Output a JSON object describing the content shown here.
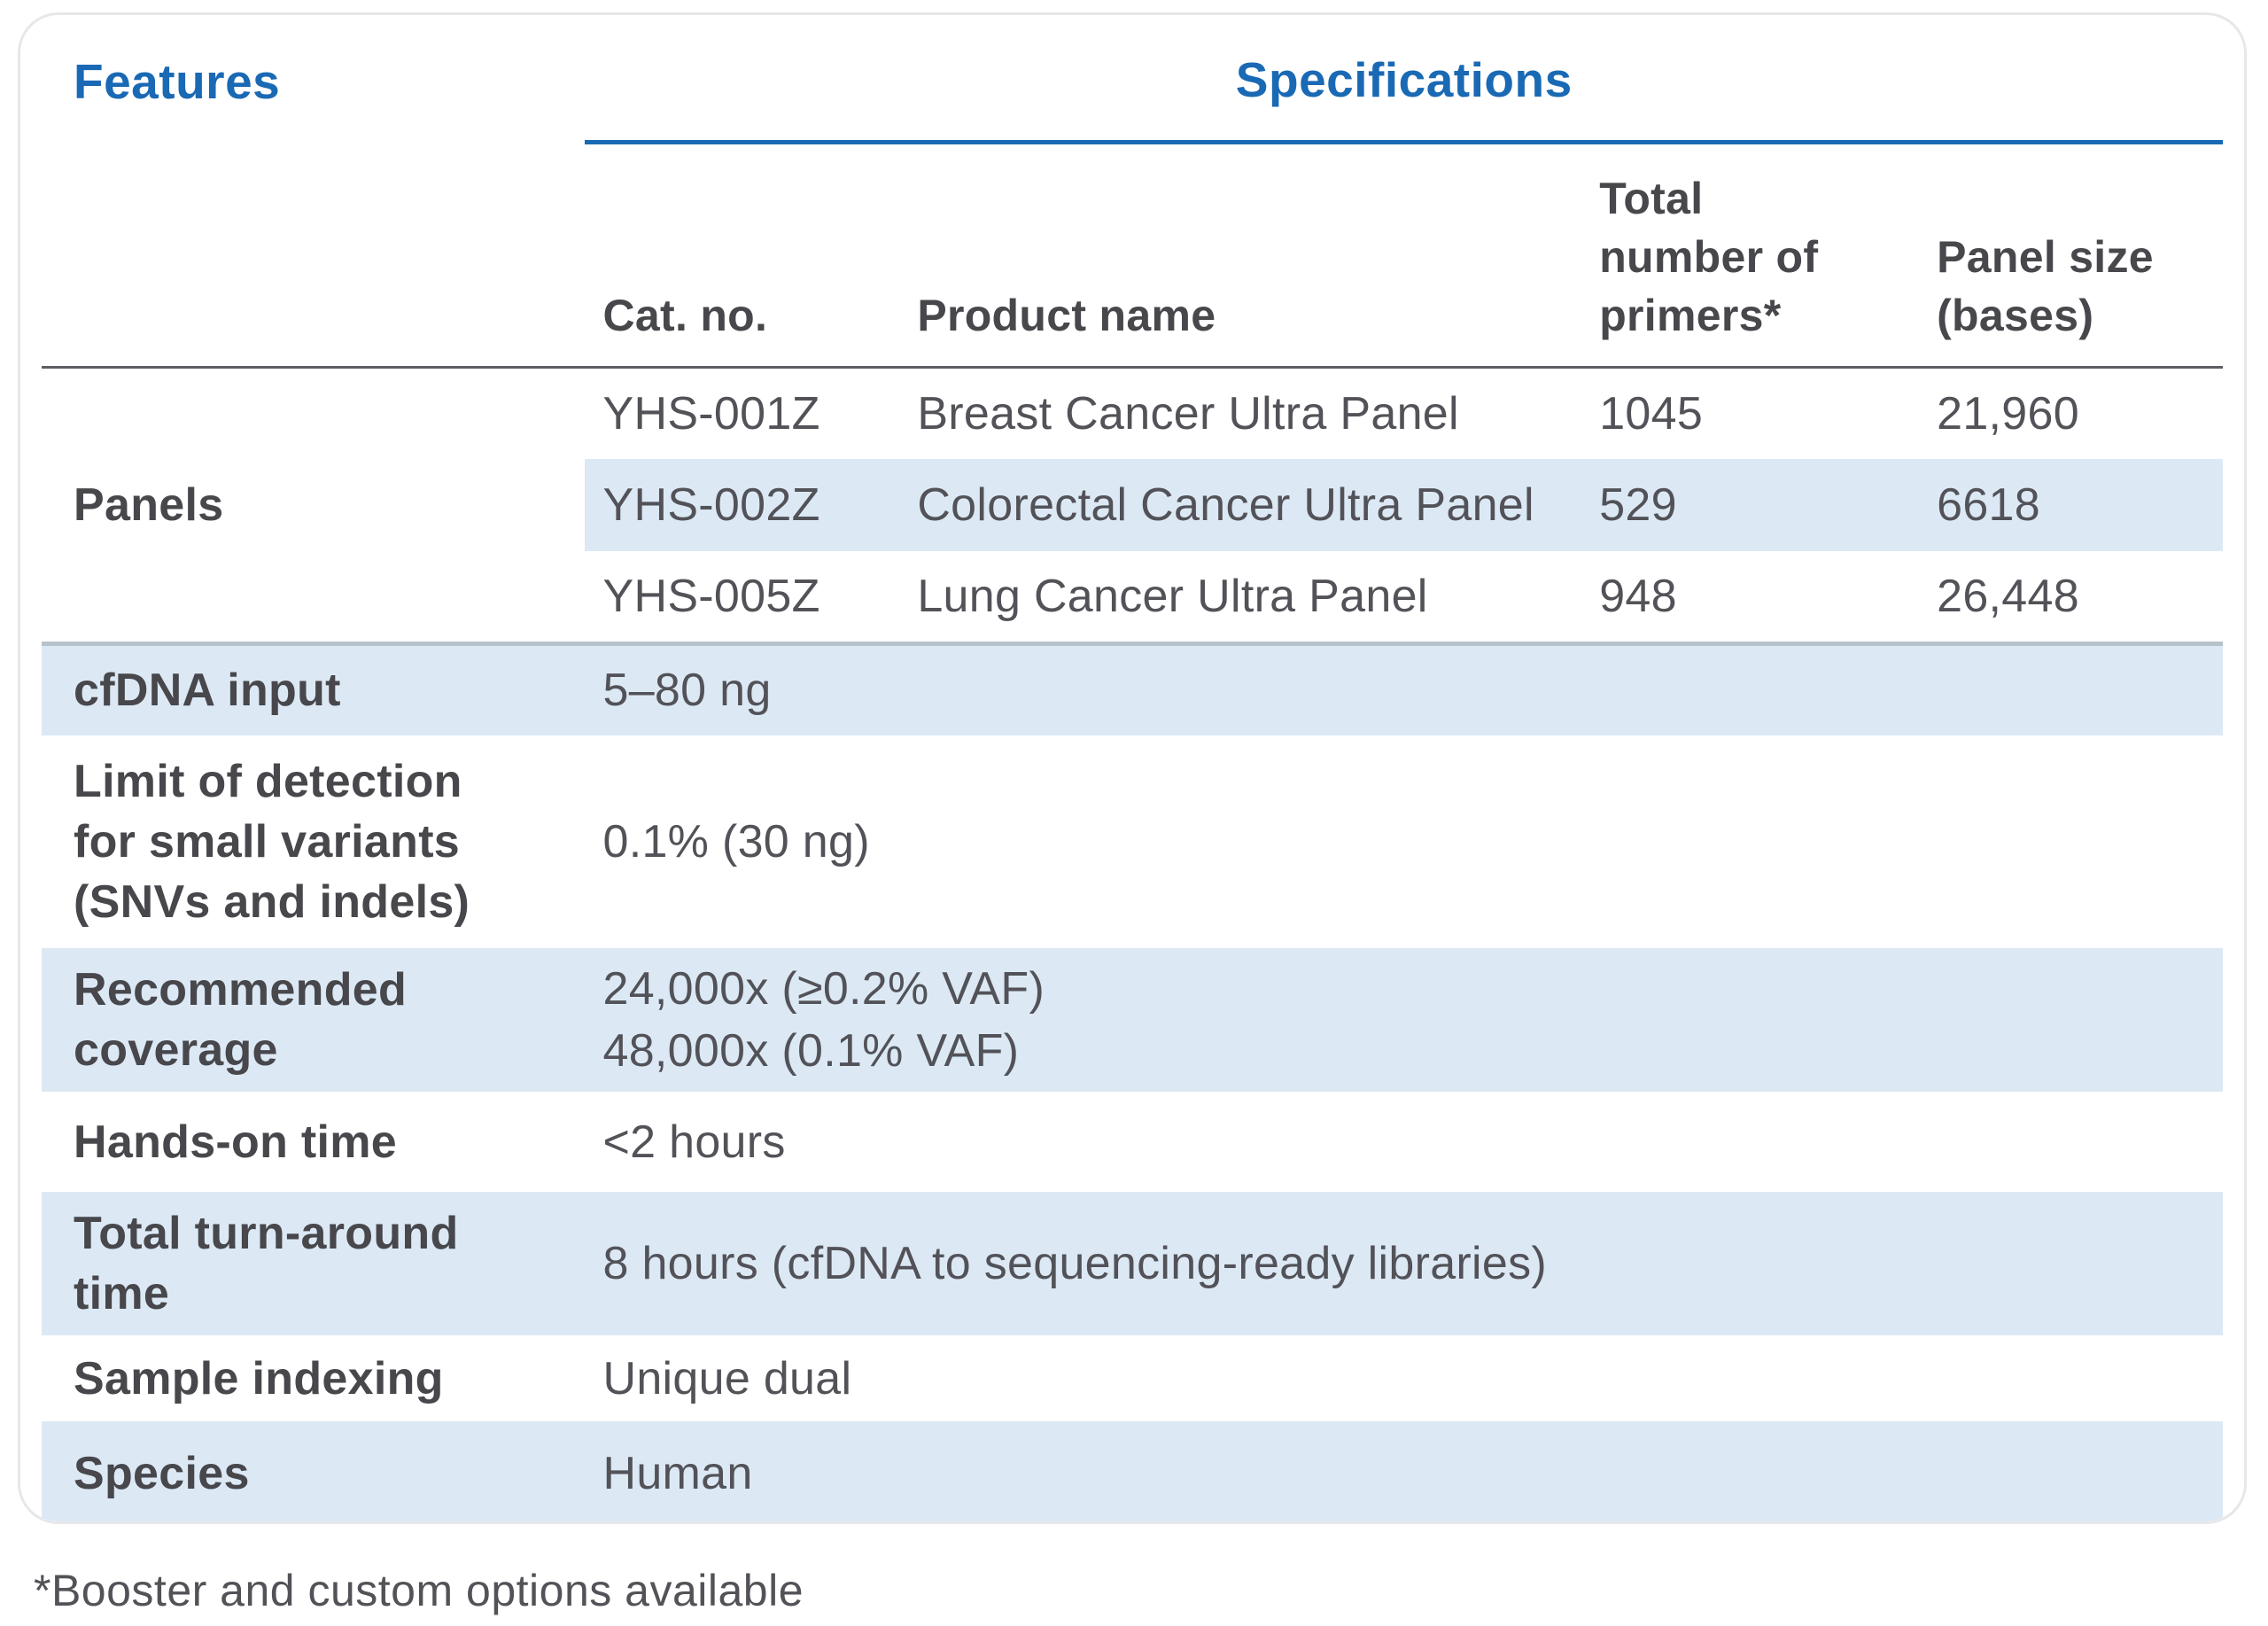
{
  "headings": {
    "features": "Features",
    "specifications": "Specifications"
  },
  "columns": {
    "cat_no": "Cat. no.",
    "product_name": "Product name",
    "total_primers": "Total\nnumber of\nprimers*",
    "panel_size": "Panel size\n(bases)"
  },
  "panels": {
    "label": "Panels",
    "rows": [
      {
        "cat_no": "YHS-001Z",
        "product_name": "Breast Cancer Ultra Panel",
        "total_primers": "1045",
        "panel_size": "21,960"
      },
      {
        "cat_no": "YHS-002Z",
        "product_name": "Colorectal Cancer Ultra Panel",
        "total_primers": "529",
        "panel_size": "6618"
      },
      {
        "cat_no": "YHS-005Z",
        "product_name": "Lung Cancer Ultra Panel",
        "total_primers": "948",
        "panel_size": "26,448"
      }
    ]
  },
  "specs": [
    {
      "feature": "cfDNA input",
      "value": "5–80 ng"
    },
    {
      "feature": "Limit of detection\nfor small variants\n(SNVs and indels)",
      "value": "0.1% (30 ng)"
    },
    {
      "feature": "Recommended\ncoverage",
      "value": "24,000x (≥0.2% VAF)\n48,000x (0.1% VAF)"
    },
    {
      "feature": "Hands-on time",
      "value": "<2 hours"
    },
    {
      "feature": "Total turn-around\ntime",
      "value": "8 hours (cfDNA to sequencing-ready libraries)"
    },
    {
      "feature": "Sample indexing",
      "value": "Unique dual"
    },
    {
      "feature": "Species",
      "value": "Human"
    }
  ],
  "footnote": "*Booster and custom options available",
  "colors": {
    "accent_blue": "#1a69b4",
    "row_highlight_blue": "#dce9f5",
    "label_gray": "#47474c",
    "body_gray": "#525258"
  }
}
